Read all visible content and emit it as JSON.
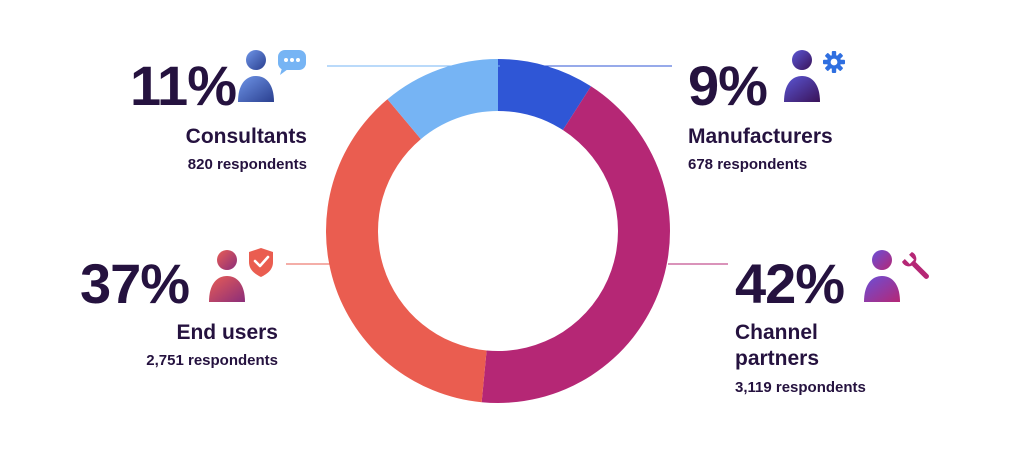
{
  "chart_data": {
    "type": "pie",
    "donut": true,
    "slices": [
      {
        "name": "Manufacturers",
        "value": 9,
        "percent_label": "9%",
        "respondents": "678 respondents",
        "color": "#2f56d6",
        "icon": "person-gear-icon"
      },
      {
        "name": "Channel partners",
        "value": 42,
        "percent_label": "42%",
        "respondents": "3,119 respondents",
        "color": "#b52775",
        "icon": "person-wrench-icon"
      },
      {
        "name": "End users",
        "value": 37,
        "percent_label": "37%",
        "respondents": "2,751 respondents",
        "color": "#ea5d50",
        "icon": "person-shield-icon"
      },
      {
        "name": "Consultants",
        "value": 11,
        "percent_label": "11%",
        "respondents": "820 respondents",
        "color": "#76b4f4",
        "icon": "person-chat-icon"
      }
    ]
  }
}
